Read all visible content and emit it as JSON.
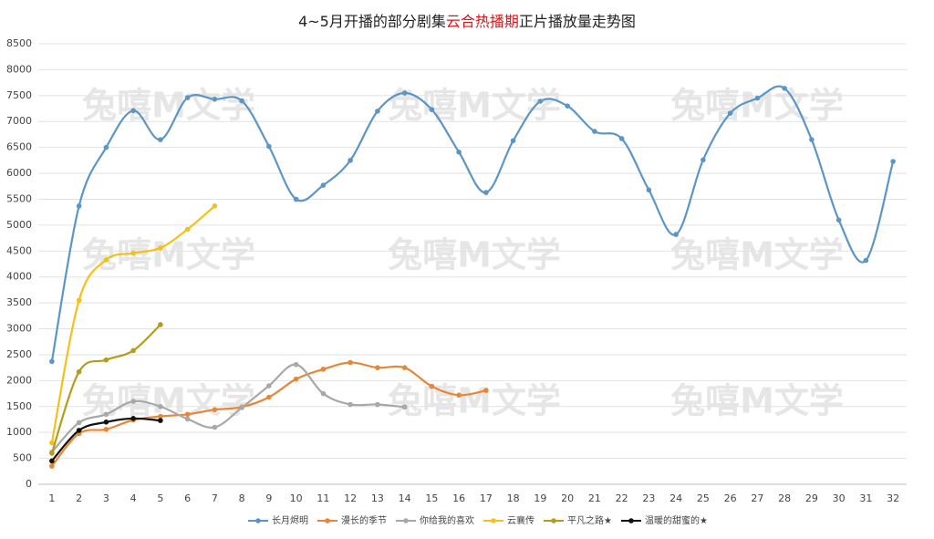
{
  "chart_data": {
    "type": "line",
    "title": [
      "4~5月开播的部分剧集",
      "云合热播期",
      "正片播放量走势图"
    ],
    "title_colors": [
      "#222222",
      "#d7191c",
      "#222222"
    ],
    "watermark": "兔嘻M文学",
    "categories": [
      "1",
      "2",
      "3",
      "4",
      "5",
      "6",
      "7",
      "8",
      "9",
      "10",
      "11",
      "12",
      "13",
      "14",
      "15",
      "16",
      "17",
      "18",
      "19",
      "20",
      "21",
      "22",
      "23",
      "24",
      "25",
      "26",
      "27",
      "28",
      "29",
      "30",
      "31",
      "32"
    ],
    "ylim": [
      0,
      8500
    ],
    "yticks": [
      0,
      500,
      1000,
      1500,
      2000,
      2500,
      3000,
      3500,
      4000,
      4500,
      5000,
      5500,
      6000,
      6500,
      7000,
      7500,
      8000,
      8500
    ],
    "grid": true,
    "legend": "bottom",
    "series": [
      {
        "name": "长月烬明",
        "color": "#5b96c6",
        "values": [
          2370,
          5370,
          6500,
          7210,
          6650,
          7460,
          7430,
          7400,
          6520,
          5500,
          5770,
          6250,
          7200,
          7550,
          7230,
          6410,
          5630,
          6630,
          7390,
          7300,
          6810,
          6670,
          5680,
          4820,
          6260,
          7160,
          7450,
          7640,
          6650,
          5100,
          4320,
          6230
        ]
      },
      {
        "name": "漫长的季节",
        "color": "#e98635",
        "values": [
          350,
          980,
          1060,
          1240,
          1310,
          1350,
          1440,
          1490,
          1680,
          2030,
          2220,
          2350,
          2250,
          2250,
          1890,
          1720,
          1810,
          null,
          null,
          null,
          null,
          null,
          null,
          null,
          null,
          null,
          null,
          null,
          null,
          null,
          null,
          null
        ]
      },
      {
        "name": "你给我的喜欢",
        "color": "#a8a8a8",
        "values": [
          620,
          1190,
          1350,
          1600,
          1500,
          1260,
          1100,
          1480,
          1900,
          2310,
          1750,
          1540,
          1540,
          1490,
          null,
          null,
          null,
          null,
          null,
          null,
          null,
          null,
          null,
          null,
          null,
          null,
          null,
          null,
          null,
          null,
          null,
          null
        ]
      },
      {
        "name": "云襄传",
        "color": "#f2c21b",
        "values": [
          800,
          3550,
          4330,
          4460,
          4560,
          4920,
          5370,
          null,
          null,
          null,
          null,
          null,
          null,
          null,
          null,
          null,
          null,
          null,
          null,
          null,
          null,
          null,
          null,
          null,
          null,
          null,
          null,
          null,
          null,
          null,
          null,
          null
        ]
      },
      {
        "name": "平凡之路★",
        "color": "#b39c1e",
        "values": [
          600,
          2170,
          2400,
          2580,
          3080,
          null,
          null,
          null,
          null,
          null,
          null,
          null,
          null,
          null,
          null,
          null,
          null,
          null,
          null,
          null,
          null,
          null,
          null,
          null,
          null,
          null,
          null,
          null,
          null,
          null,
          null,
          null
        ]
      },
      {
        "name": "温暖的甜蜜的★",
        "color": "#111111",
        "values": [
          450,
          1040,
          1200,
          1270,
          1230,
          null,
          null,
          null,
          null,
          null,
          null,
          null,
          null,
          null,
          null,
          null,
          null,
          null,
          null,
          null,
          null,
          null,
          null,
          null,
          null,
          null,
          null,
          null,
          null,
          null,
          null,
          null
        ]
      }
    ]
  }
}
